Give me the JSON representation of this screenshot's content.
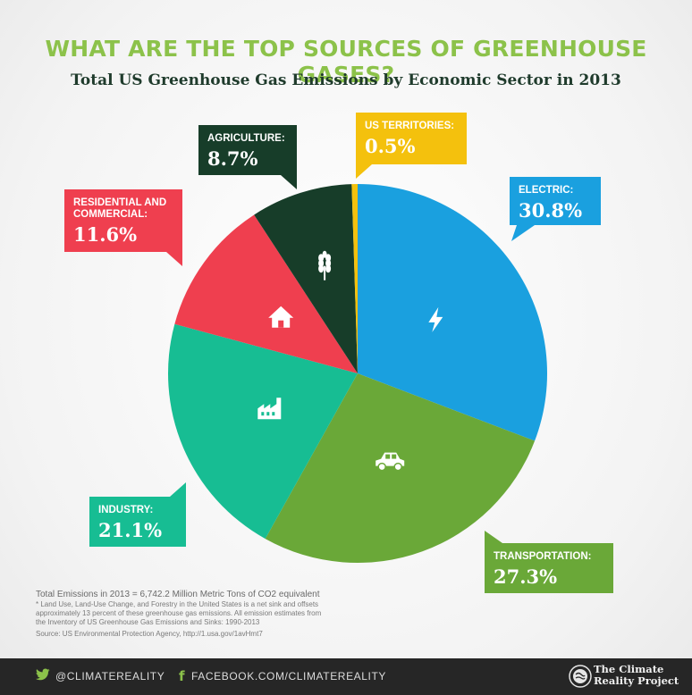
{
  "title": "WHAT ARE THE TOP SOURCES OF GREENHOUSE GASES?",
  "subtitle": "Total US Greenhouse Gas Emissions by Economic Sector in 2013",
  "chart_data": {
    "type": "pie",
    "title": "WHAT ARE THE TOP SOURCES OF GREENHOUSE GASES?",
    "subtitle": "Total US Greenhouse Gas Emissions by Economic Sector in 2013",
    "slices": [
      {
        "label": "ELECTRIC:",
        "value": 30.8,
        "display": "30.8%",
        "color": "#1aa0df",
        "icon": "lightning-icon"
      },
      {
        "label": "TRANSPORTATION:",
        "value": 27.3,
        "display": "27.3%",
        "color": "#6aa838",
        "icon": "car-icon"
      },
      {
        "label": "INDUSTRY:",
        "value": 21.1,
        "display": "21.1%",
        "color": "#17bd93",
        "icon": "factory-icon"
      },
      {
        "label": "RESIDENTIAL AND COMMERCIAL:",
        "value": 11.6,
        "display": "11.6%",
        "color": "#ef3f4f",
        "icon": "house-icon"
      },
      {
        "label": "AGRICULTURE:",
        "value": 8.7,
        "display": "8.7%",
        "color": "#173d29",
        "icon": "wheat-icon"
      },
      {
        "label": "US TERRITORIES:",
        "value": 0.5,
        "display": "0.5%",
        "color": "#f4c10d",
        "icon": ""
      }
    ]
  },
  "notes": {
    "total": "Total Emissions in 2013 = 6,742.2 Million Metric Tons of CO2 equivalent",
    "footnote_1": "* Land Use, Land-Use Change, and Forestry in the United States is a net sink and offsets",
    "footnote_2": "approximately 13 percent of these greenhouse gas emissions. All emission estimates from",
    "footnote_3": "the Inventory of US Greenhouse Gas Emissions and Sinks: 1990-2013",
    "source": "Source: US Environmental Protection Agency, http://1.usa.gov/1avHmt7"
  },
  "footer": {
    "twitter": "@CLIMATEREALITY",
    "facebook": "FACEBOOK.COM/CLIMATEREALITY",
    "logo_line1": "The Climate",
    "logo_line2": "Reality Project"
  }
}
